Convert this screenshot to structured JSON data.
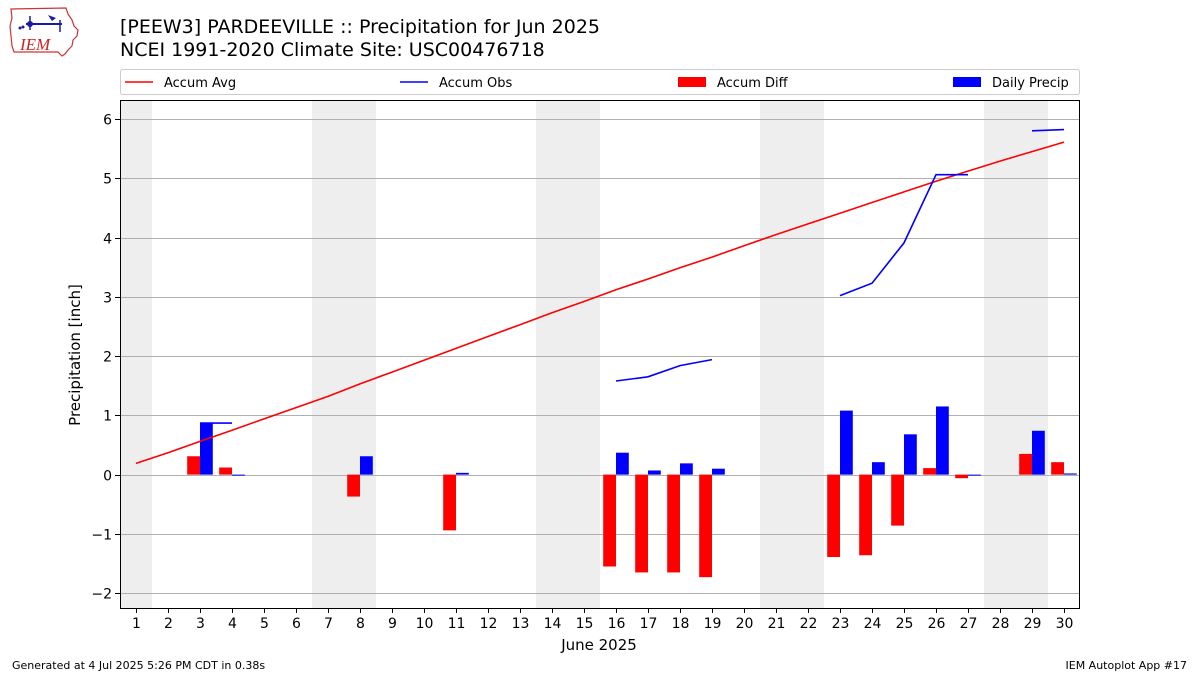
{
  "header": {
    "title": "[PEEW3] PARDEEVILLE :: Precipitation for Jun 2025",
    "subtitle": "NCEI 1991-2020 Climate Site: USC00476718",
    "logo_text": "IEM"
  },
  "footer": {
    "left": "Generated at 4 Jul 2025 5:26 PM CDT in 0.38s",
    "right": "IEM Autoplot App #17"
  },
  "colors": {
    "red": "#ff0000",
    "blue": "#0000ff",
    "weekend": "#eeeeee",
    "grid": "#b0b0b0"
  },
  "chart_data": {
    "type": "bar",
    "xlabel": "June 2025",
    "ylabel": "Precipitation [inch]",
    "xlim": [
      0.5,
      30.5
    ],
    "ylim": [
      -2.25,
      6.32
    ],
    "yticks": [
      -2,
      -1,
      0,
      1,
      2,
      3,
      4,
      5,
      6
    ],
    "ytick_labels": [
      "−2",
      "−1",
      "0",
      "1",
      "2",
      "3",
      "4",
      "5",
      "6"
    ],
    "days": [
      1,
      2,
      3,
      4,
      5,
      6,
      7,
      8,
      9,
      10,
      11,
      12,
      13,
      14,
      15,
      16,
      17,
      18,
      19,
      20,
      21,
      22,
      23,
      24,
      25,
      26,
      27,
      28,
      29,
      30
    ],
    "weekend_days": [
      1,
      7,
      8,
      14,
      15,
      21,
      22,
      28,
      29
    ],
    "grid": true,
    "legend": {
      "placement": "top",
      "entries": [
        {
          "label": "Accum Avg",
          "kind": "line",
          "color": "#ff0000"
        },
        {
          "label": "Accum Obs",
          "kind": "line",
          "color": "#0000ff"
        },
        {
          "label": "Accum Diff",
          "kind": "bar",
          "color": "#ff0000"
        },
        {
          "label": "Daily Precip",
          "kind": "bar",
          "color": "#0000ff"
        }
      ]
    },
    "series": [
      {
        "name": "Accum Avg",
        "type": "line",
        "color": "#ff0000",
        "values": [
          0.19,
          0.37,
          0.56,
          0.75,
          0.94,
          1.13,
          1.32,
          1.53,
          1.73,
          1.93,
          2.13,
          2.33,
          2.53,
          2.73,
          2.92,
          3.12,
          3.3,
          3.49,
          3.67,
          3.86,
          4.05,
          4.23,
          4.41,
          4.59,
          4.77,
          4.95,
          5.12,
          5.29,
          5.45,
          5.61
        ]
      },
      {
        "name": "Accum Obs",
        "type": "line",
        "color": "#0000ff",
        "segments": [
          {
            "x": [
              3,
              4
            ],
            "y": [
              0.87,
              0.87
            ]
          },
          {
            "x": [
              16,
              17,
              18,
              19
            ],
            "y": [
              1.58,
              1.65,
              1.84,
              1.94
            ]
          },
          {
            "x": [
              23,
              24,
              25,
              26,
              27
            ],
            "y": [
              3.02,
              3.23,
              3.91,
              5.06,
              5.06
            ]
          },
          {
            "x": [
              29,
              30
            ],
            "y": [
              5.8,
              5.82
            ]
          }
        ]
      },
      {
        "name": "Accum Diff",
        "type": "bar",
        "color": "#ff0000",
        "points": [
          {
            "day": 3,
            "value": 0.31
          },
          {
            "day": 4,
            "value": 0.12
          },
          {
            "day": 8,
            "value": -0.37
          },
          {
            "day": 11,
            "value": -0.94
          },
          {
            "day": 16,
            "value": -1.55
          },
          {
            "day": 17,
            "value": -1.65
          },
          {
            "day": 18,
            "value": -1.65
          },
          {
            "day": 19,
            "value": -1.73
          },
          {
            "day": 23,
            "value": -1.39
          },
          {
            "day": 24,
            "value": -1.36
          },
          {
            "day": 25,
            "value": -0.86
          },
          {
            "day": 26,
            "value": 0.11
          },
          {
            "day": 27,
            "value": -0.06
          },
          {
            "day": 29,
            "value": 0.35
          },
          {
            "day": 30,
            "value": 0.21
          }
        ]
      },
      {
        "name": "Daily Precip",
        "type": "bar",
        "color": "#0000ff",
        "points": [
          {
            "day": 3,
            "value": 0.87
          },
          {
            "day": 4,
            "value": 0.0
          },
          {
            "day": 8,
            "value": 0.31
          },
          {
            "day": 11,
            "value": 0.03
          },
          {
            "day": 16,
            "value": 0.37
          },
          {
            "day": 17,
            "value": 0.07
          },
          {
            "day": 18,
            "value": 0.19
          },
          {
            "day": 19,
            "value": 0.1
          },
          {
            "day": 23,
            "value": 1.08
          },
          {
            "day": 24,
            "value": 0.21
          },
          {
            "day": 25,
            "value": 0.68
          },
          {
            "day": 26,
            "value": 1.15
          },
          {
            "day": 27,
            "value": 0.0
          },
          {
            "day": 29,
            "value": 0.74
          },
          {
            "day": 30,
            "value": 0.02
          }
        ]
      }
    ]
  }
}
